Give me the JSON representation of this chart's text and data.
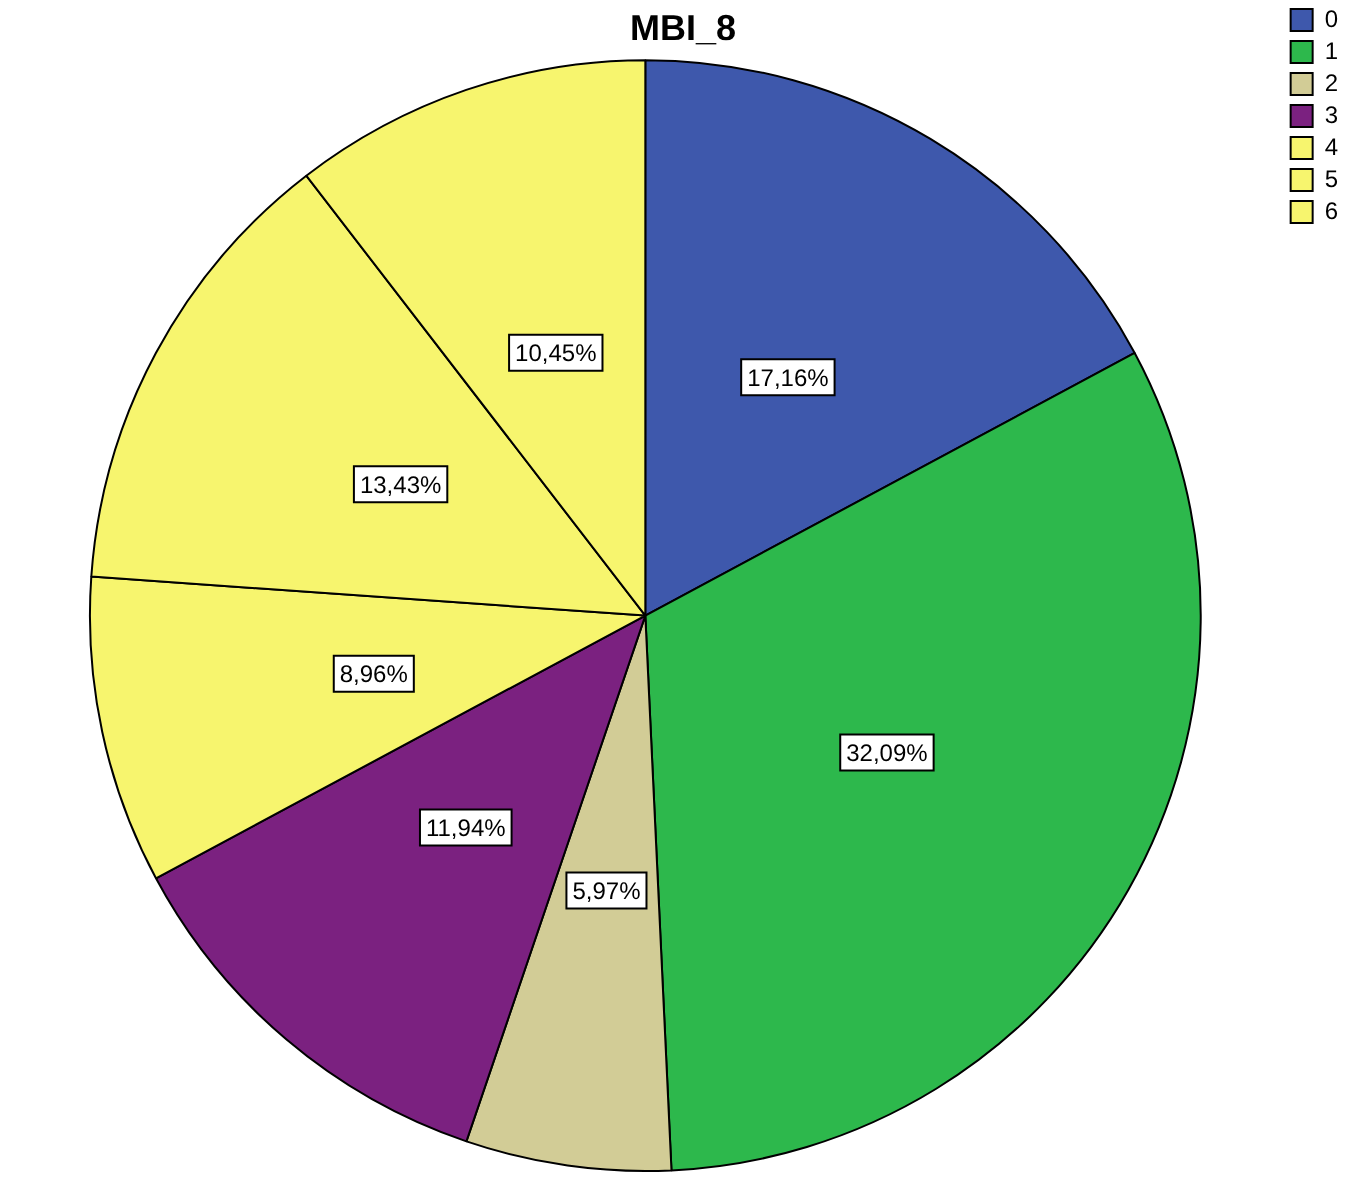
{
  "chart_data": {
    "type": "pie",
    "title": "MBI_8",
    "categories": [
      "0",
      "1",
      "2",
      "3",
      "4",
      "5",
      "6"
    ],
    "values": [
      17.16,
      32.09,
      5.97,
      11.94,
      8.96,
      13.43,
      10.45
    ],
    "value_labels": [
      "17,16%",
      "32,09%",
      "5,97%",
      "11,94%",
      "8,96%",
      "13,43%",
      "10,45%"
    ],
    "colors": [
      "#3e58ac",
      "#2db84c",
      "#d2cc96",
      "#7b2180",
      "#f7f56e",
      "#f7f56e",
      "#f7f56e"
    ],
    "legend": "top right"
  }
}
